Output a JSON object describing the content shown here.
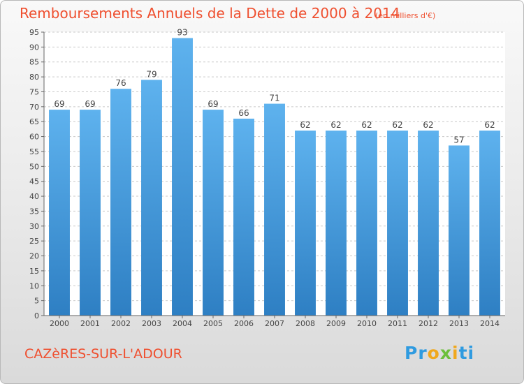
{
  "title": "Remboursements Annuels de la Dette de 2000 à 2014",
  "subtitle": "(en milliers d'€)",
  "commune": "CAZèRES-SUR-L'ADOUR",
  "brand": {
    "parts": [
      "Pr",
      "o",
      "x",
      "i",
      "ti"
    ],
    "colors": [
      "#2f9be0",
      "#f0a81d",
      "#6cbf3b",
      "#f0a81d",
      "#2f9be0"
    ]
  },
  "colors": {
    "bar_top": "#5eb2ee",
    "bar_bottom": "#2e7fc3",
    "title": "#ef4f2f",
    "grid": "#c9c9c9"
  },
  "chart_data": {
    "type": "bar",
    "title": "Remboursements Annuels de la Dette de 2000 à 2014",
    "categories": [
      "2000",
      "2001",
      "2002",
      "2003",
      "2004",
      "2005",
      "2006",
      "2007",
      "2008",
      "2009",
      "2010",
      "2011",
      "2012",
      "2013",
      "2014"
    ],
    "values": [
      69,
      69,
      76,
      79,
      93,
      69,
      66,
      71,
      62,
      62,
      62,
      62,
      62,
      57,
      62
    ],
    "ylim": [
      0,
      95
    ],
    "yticks": [
      0,
      5,
      10,
      15,
      20,
      25,
      30,
      35,
      40,
      45,
      50,
      55,
      60,
      65,
      70,
      75,
      80,
      85,
      90,
      95
    ],
    "grid": true,
    "xlabel": "",
    "ylabel": ""
  }
}
